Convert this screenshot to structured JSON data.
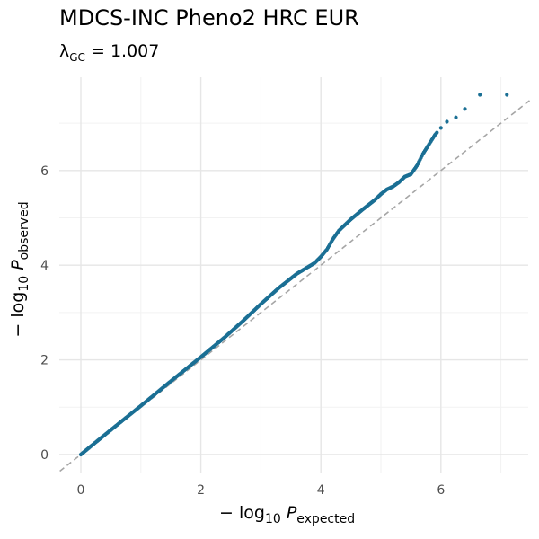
{
  "title": "MDCS-INC Pheno2 HRC EUR",
  "subtitle": {
    "lambda_symbol": "λ",
    "lambda_sub": "GC",
    "lambda_eq": " = ",
    "lambda_value": "1.007"
  },
  "xlabel": {
    "prefix": "− log",
    "base": "10",
    "var": "P",
    "sub": "expected"
  },
  "ylabel": {
    "prefix": "− log",
    "base": "10",
    "var": "P",
    "sub": "observed"
  },
  "colors": {
    "points": "#1a6f94",
    "diagonal": "#a6a6a6",
    "grid_major": "#e6e6e6",
    "grid_minor": "#f2f2f2"
  },
  "chart_data": {
    "type": "scatter",
    "title": "MDCS-INC Pheno2 HRC EUR",
    "annotation": "λGC = 1.007",
    "xlim": [
      -0.35,
      7.5
    ],
    "ylim": [
      -0.35,
      7.75
    ],
    "x_ticks": [
      0,
      2,
      4,
      6
    ],
    "y_ticks": [
      0,
      2,
      4,
      6
    ],
    "grid": true,
    "reference_line": "y = x",
    "series": [
      {
        "x": [
          0.0,
          0.2,
          0.5,
          1.0,
          1.5,
          2.0,
          2.4,
          2.7,
          3.0,
          3.3,
          3.6,
          3.9,
          4.0,
          4.1,
          4.2,
          4.3,
          4.5,
          4.7,
          4.9,
          5.0,
          5.1,
          5.2,
          5.3,
          5.4,
          5.5,
          5.6,
          5.7,
          5.8,
          5.9,
          6.0,
          6.1,
          6.25,
          6.4,
          6.65,
          7.1
        ],
        "y": [
          0.0,
          0.21,
          0.52,
          1.03,
          1.55,
          2.06,
          2.48,
          2.82,
          3.18,
          3.52,
          3.82,
          4.05,
          4.18,
          4.33,
          4.55,
          4.73,
          4.97,
          5.18,
          5.38,
          5.5,
          5.6,
          5.66,
          5.75,
          5.87,
          5.92,
          6.1,
          6.35,
          6.55,
          6.75,
          6.9,
          7.03,
          7.12,
          7.3,
          7.6,
          7.6
        ]
      }
    ]
  }
}
